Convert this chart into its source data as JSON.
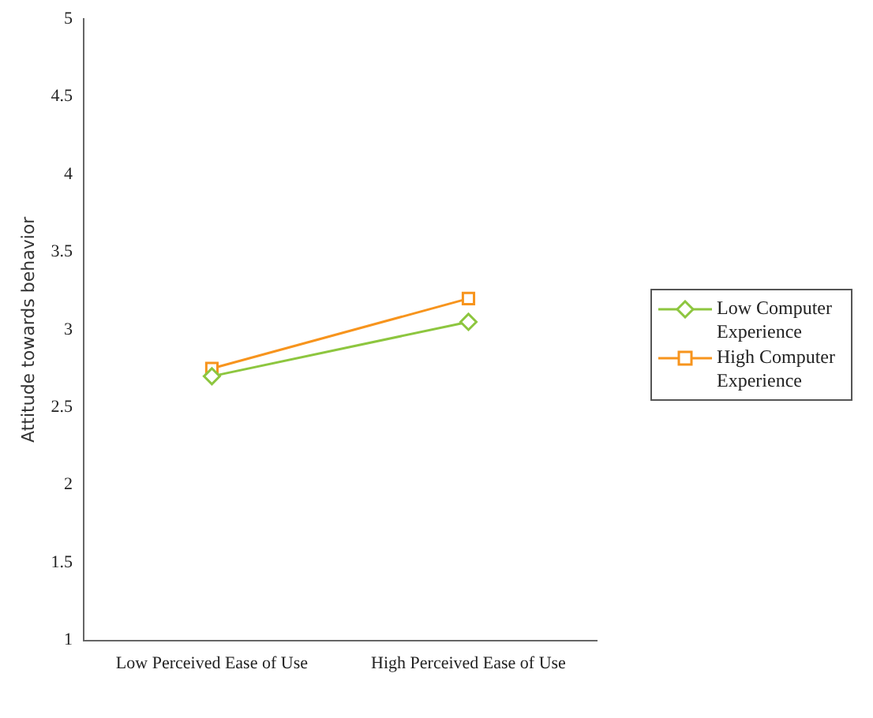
{
  "chart_data": {
    "type": "line",
    "ylabel": "Attitude towards behavior",
    "categories": [
      "Low Perceived Ease of Use",
      "High Perceived Ease of Use"
    ],
    "series": [
      {
        "name": "Low Computer Experience",
        "color": "#8dc63f",
        "values": [
          2.7,
          3.05
        ],
        "marker": "diamond"
      },
      {
        "name": "High Computer Experience",
        "color": "#f7941d",
        "values": [
          2.75,
          3.2
        ],
        "marker": "square"
      }
    ],
    "ylim": [
      1,
      5
    ],
    "yticks": [
      1,
      1.5,
      2,
      2.5,
      3,
      3.5,
      4,
      4.5,
      5
    ],
    "grid": false,
    "legend": "right",
    "line_style": "solid"
  }
}
